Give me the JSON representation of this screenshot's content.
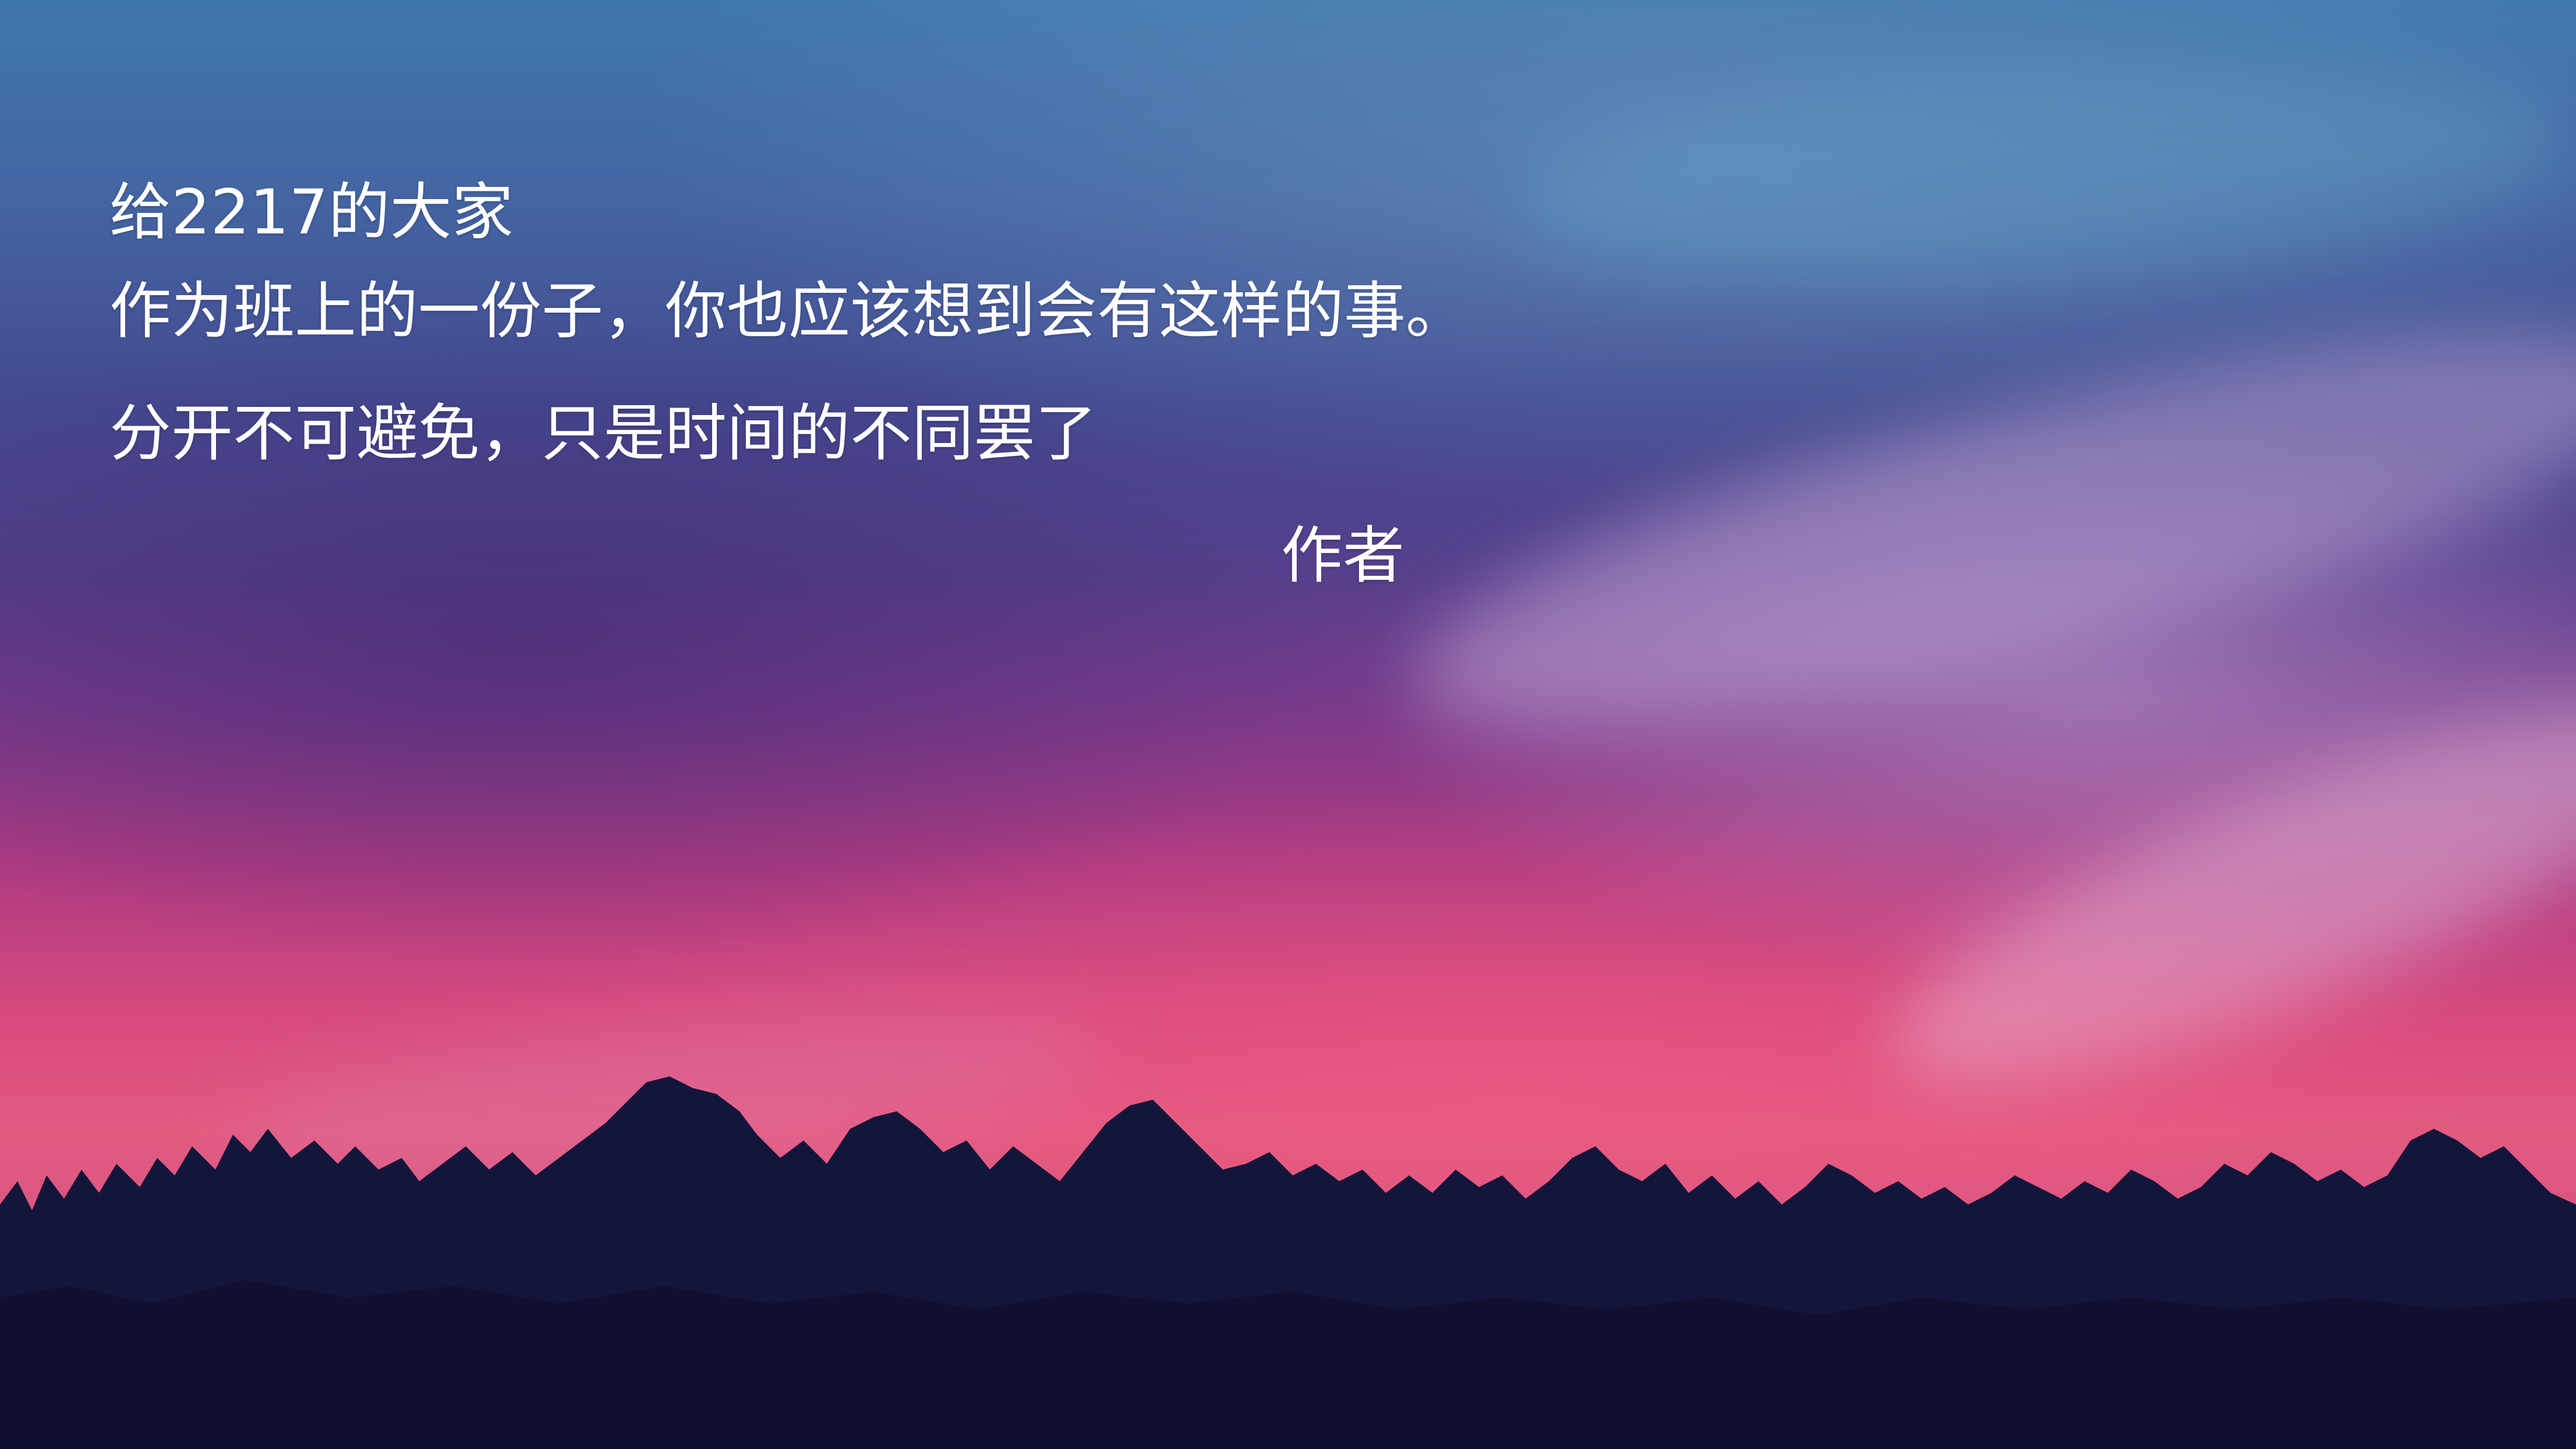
{
  "text": {
    "greeting": "给2217的大家",
    "line_one": "作为班上的一份子，你也应该想到会有这样的事。",
    "line_two": "分开不可避免，只是时间的不同罢了",
    "signature": "作者"
  },
  "background": {
    "scene": "sunset-sky-over-tree-silhouette",
    "colors": {
      "sky_top": "#3f78ad",
      "sky_mid": "#573f8c",
      "sky_glow": "#e25a80",
      "trees": "#14153a",
      "text": "#ffffff"
    }
  }
}
